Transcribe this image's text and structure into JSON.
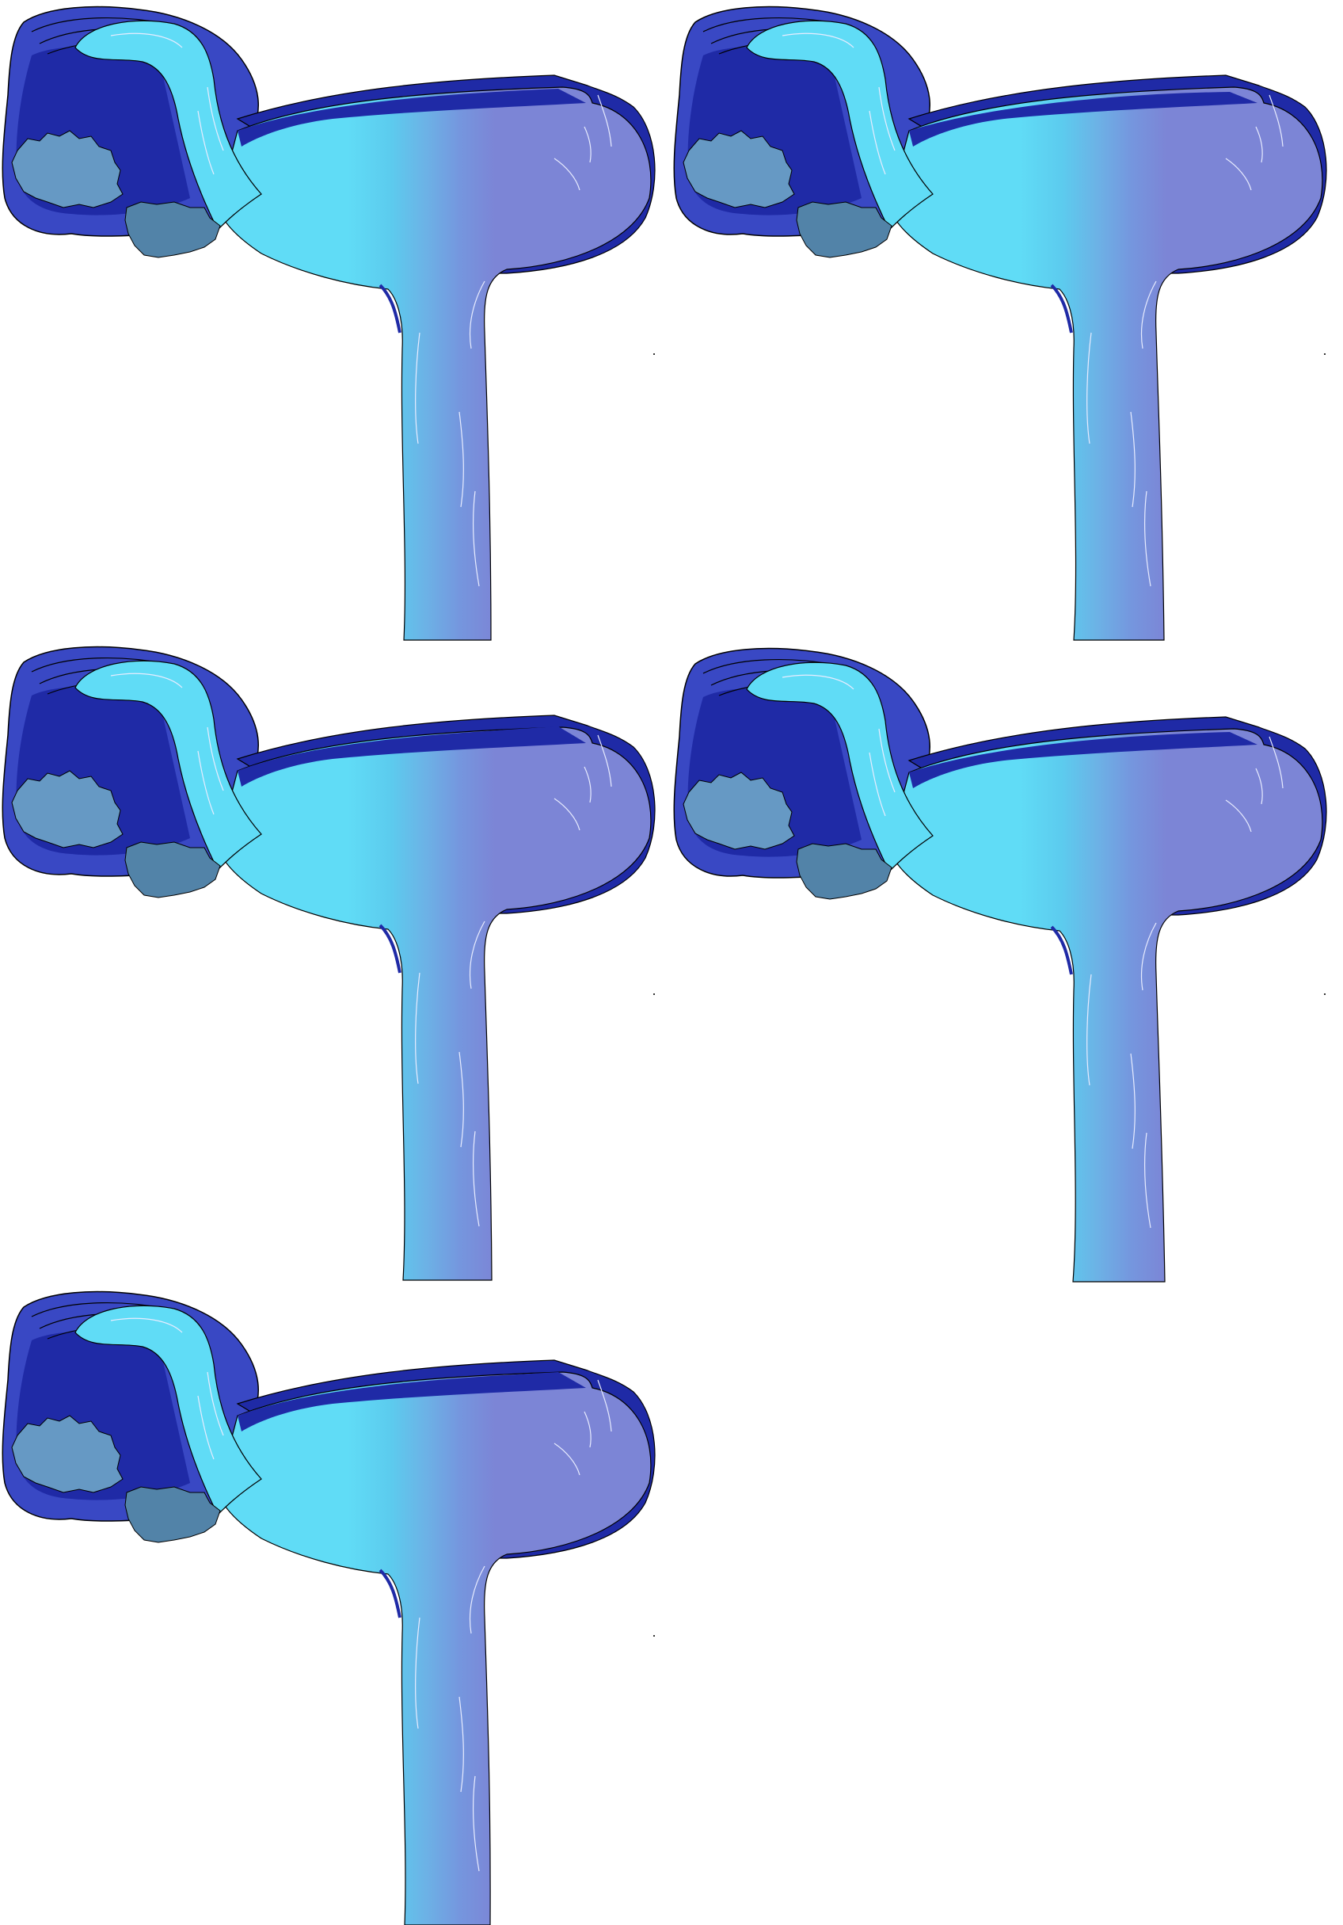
{
  "sprite_sheet": {
    "frame_count": 5,
    "columns": 2,
    "subject": "waterfall-sprite",
    "colors": {
      "background": "#ffffff",
      "rock_dark": "#1f2aa6",
      "rock_mid": "#2f3dbb",
      "rock_outer": "#3948c4",
      "stream_light": "#60dcf6",
      "pool_main": "#7c85d6",
      "stone_light": "#6699c4",
      "stone_dark": "#5283a8",
      "outline": "#000000",
      "highlight": "#e8ecff"
    }
  }
}
